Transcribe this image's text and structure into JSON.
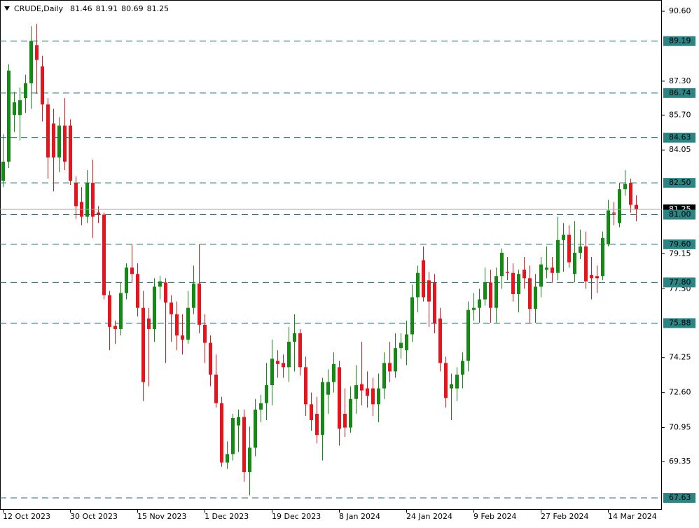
{
  "chart_data": {
    "type": "candlestick",
    "title": "CRUDE,Daily",
    "categories": [
      "12 Oct 2023",
      null,
      null,
      null,
      null,
      null,
      null,
      null,
      null,
      null,
      null,
      null,
      "30 Oct 2023",
      null,
      null,
      null,
      null,
      null,
      null,
      null,
      null,
      null,
      null,
      null,
      "15 Nov 2023",
      null,
      null,
      null,
      null,
      null,
      null,
      null,
      null,
      null,
      null,
      null,
      "1 Dec 2023",
      null,
      null,
      null,
      null,
      null,
      null,
      null,
      null,
      null,
      null,
      null,
      "19 Dec 2023",
      null,
      null,
      null,
      null,
      null,
      null,
      null,
      null,
      null,
      null,
      null,
      "8 Jan 2024",
      null,
      null,
      null,
      null,
      null,
      null,
      null,
      null,
      null,
      null,
      null,
      "24 Jan 2024",
      null,
      null,
      null,
      null,
      null,
      null,
      null,
      null,
      null,
      null,
      null,
      "9 Feb 2024",
      null,
      null,
      null,
      null,
      null,
      null,
      null,
      null,
      null,
      null,
      null,
      "27 Feb 2024",
      null,
      null,
      null,
      null,
      null,
      null,
      null,
      null,
      null,
      null,
      null,
      "14 Mar 2024",
      null,
      null,
      null,
      null,
      null
    ],
    "open": [
      82.6,
      83.5,
      85.7,
      85.7,
      86.5,
      87.2,
      89.0,
      88.0,
      86.2,
      85.3,
      83.7,
      85.2,
      85.2,
      82.5,
      81.6,
      80.9,
      82.5,
      81.1,
      81.0,
      77.2,
      75.75,
      75.6,
      77.3,
      78.5,
      78.2,
      76.6,
      76.1,
      75.6,
      77.6,
      77.8,
      76.85,
      76.3,
      75.3,
      75.1,
      76.6,
      77.75,
      75.8,
      74.95,
      73.45,
      72.1,
      69.3,
      69.7,
      71.05,
      71.45,
      68.85,
      70.0,
      71.8,
      72.1,
      72.95,
      74.1,
      74.0,
      73.8,
      75.0,
      75.4,
      73.8,
      72.05,
      71.6,
      70.6,
      72.5,
      73.1,
      73.8,
      71.6,
      70.95,
      72.3,
      73.0,
      72.8,
      72.8,
      72.05,
      72.8,
      74.0,
      73.6,
      74.7,
      74.6,
      75.35,
      77.1,
      78.85,
      77.9,
      77.8,
      76.1,
      74.0,
      72.8,
      72.8,
      73.45,
      74.1,
      76.5,
      76.6,
      77.0,
      77.8,
      76.6,
      78.1,
      78.3,
      78.25,
      77.25,
      78.4,
      78.0,
      76.55,
      77.6,
      78.4,
      78.5,
      78.25,
      79.8,
      80.05,
      78.2,
      79.2,
      79.5,
      78.15,
      78.1,
      78.1,
      79.6,
      81.1,
      80.6,
      82.2,
      82.5,
      81.46
    ],
    "high": [
      84.8,
      88.1,
      86.8,
      87.0,
      87.6,
      89.9,
      90.0,
      88.5,
      86.5,
      86.0,
      85.6,
      86.5,
      85.5,
      82.8,
      82.3,
      83.1,
      83.6,
      81.4,
      81.1,
      77.4,
      76.0,
      77.8,
      78.7,
      79.6,
      78.7,
      77.4,
      76.6,
      78.0,
      78.1,
      78.0,
      77.2,
      76.9,
      76.3,
      77.4,
      78.6,
      79.6,
      76.3,
      75.3,
      74.4,
      72.4,
      70.3,
      71.6,
      71.8,
      71.8,
      71.0,
      72.3,
      72.5,
      74.0,
      75.1,
      74.6,
      74.4,
      75.7,
      76.3,
      75.6,
      74.3,
      72.6,
      72.4,
      73.3,
      73.7,
      74.5,
      74.1,
      72.8,
      72.9,
      73.9,
      75.0,
      73.6,
      73.3,
      73.5,
      74.5,
      75.0,
      75.4,
      75.4,
      76.0,
      77.7,
      78.6,
      79.5,
      78.3,
      78.2,
      76.6,
      74.3,
      73.5,
      73.8,
      74.5,
      76.9,
      77.3,
      77.5,
      78.5,
      78.4,
      78.5,
      79.4,
      79.0,
      78.7,
      78.4,
      79.0,
      78.6,
      78.2,
      79.0,
      79.5,
      79.0,
      80.9,
      80.6,
      80.5,
      80.7,
      80.3,
      80.2,
      79.0,
      78.6,
      80.2,
      81.7,
      81.6,
      82.5,
      83.1,
      82.7,
      81.91
    ],
    "low": [
      82.3,
      83.2,
      84.9,
      84.5,
      85.8,
      86.0,
      86.7,
      85.4,
      82.7,
      82.1,
      83.0,
      83.1,
      82.4,
      80.8,
      80.5,
      80.6,
      79.9,
      80.6,
      77.0,
      74.6,
      74.9,
      75.3,
      77.0,
      77.8,
      76.2,
      72.2,
      72.9,
      75.0,
      77.0,
      74.0,
      75.0,
      74.6,
      74.4,
      74.9,
      76.3,
      75.4,
      74.0,
      72.9,
      71.9,
      69.1,
      69.0,
      69.4,
      69.8,
      68.4,
      67.75,
      69.6,
      71.2,
      71.3,
      72.0,
      73.3,
      73.3,
      73.1,
      73.6,
      73.4,
      71.5,
      70.8,
      70.2,
      69.4,
      71.6,
      72.6,
      70.1,
      70.5,
      70.7,
      71.6,
      72.0,
      71.9,
      71.5,
      71.2,
      72.3,
      73.1,
      73.3,
      74.2,
      73.9,
      75.0,
      76.4,
      76.9,
      75.7,
      75.4,
      73.6,
      71.9,
      71.3,
      72.2,
      72.8,
      73.6,
      76.0,
      75.9,
      76.7,
      75.9,
      75.9,
      77.5,
      77.9,
      76.9,
      76.4,
      77.5,
      75.9,
      75.9,
      77.1,
      78.0,
      77.8,
      77.9,
      78.3,
      78.5,
      77.8,
      78.9,
      77.5,
      77.0,
      77.3,
      77.9,
      79.5,
      80.5,
      80.4,
      81.9,
      81.1,
      80.69
    ],
    "close": [
      83.5,
      87.8,
      86.3,
      86.4,
      87.2,
      89.2,
      88.3,
      86.2,
      83.7,
      83.7,
      85.2,
      83.5,
      82.6,
      81.4,
      80.9,
      82.5,
      80.9,
      81.0,
      77.2,
      75.7,
      75.6,
      77.3,
      78.5,
      78.2,
      76.6,
      73.1,
      75.6,
      77.6,
      77.85,
      76.85,
      76.3,
      75.3,
      75.1,
      76.6,
      77.75,
      75.8,
      74.95,
      73.45,
      72.1,
      69.3,
      69.7,
      71.4,
      71.45,
      68.85,
      70.0,
      71.8,
      72.1,
      72.95,
      74.2,
      73.95,
      73.8,
      75.0,
      75.4,
      73.8,
      72.05,
      71.3,
      70.6,
      73.1,
      73.1,
      73.95,
      70.9,
      70.95,
      72.3,
      72.95,
      72.7,
      72.45,
      72.05,
      72.8,
      74.0,
      73.6,
      74.7,
      74.95,
      75.35,
      77.1,
      78.25,
      77.1,
      76.9,
      75.85,
      74.0,
      72.35,
      73.0,
      73.45,
      74.1,
      76.5,
      76.6,
      77.0,
      77.8,
      76.6,
      78.1,
      79.2,
      78.25,
      77.25,
      78.2,
      78.0,
      76.55,
      77.6,
      78.65,
      78.5,
      78.25,
      79.8,
      80.05,
      78.75,
      79.2,
      79.5,
      77.85,
      78.0,
      78.0,
      79.9,
      81.2,
      81.05,
      82.2,
      82.45,
      81.46,
      81.25
    ],
    "up_color": "#138b13",
    "down_color": "#e8141c",
    "ylim": [
      67.07,
      91.13
    ],
    "yticks": [
      {
        "value": 90.6,
        "label": "90.60"
      },
      {
        "value": 87.3,
        "label": "87.30"
      },
      {
        "value": 85.7,
        "label": "85.70"
      },
      84.05,
      79.15,
      {
        "value": 77.5,
        "label": "77.50"
      },
      74.25,
      {
        "value": 72.6,
        "label": "72.60"
      },
      70.95,
      69.35
    ],
    "levels": [
      89.19,
      86.74,
      84.63,
      {
        "value": 82.5,
        "label": "82.50"
      },
      {
        "value": 81,
        "label": "81.00"
      },
      {
        "value": 79.6,
        "label": "79.60"
      },
      {
        "value": 77.8,
        "label": "77.80"
      },
      75.88,
      67.63
    ],
    "level_color": "#1f6e6e",
    "level_label_color": "#2b8585",
    "last_price_color": "#000000"
  }
}
